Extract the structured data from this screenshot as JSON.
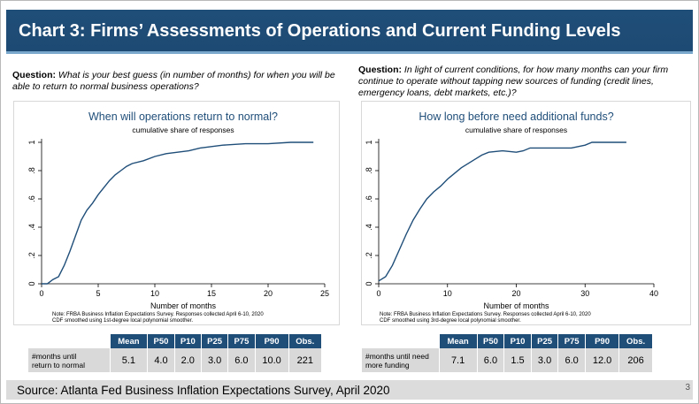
{
  "page": {
    "title": "Chart 3: Firms’ Assessments of Operations and Current Funding Levels",
    "source": "Source: Atlanta Fed Business Inflation Expectations Survey, April 2020",
    "page_number": "3"
  },
  "colors": {
    "title_bar": "#1f4e79",
    "series": "#1f4e79",
    "table_header": "#1f4e79",
    "table_cell": "#d9d9d9",
    "source_bar": "#dcdcdc"
  },
  "left": {
    "question_label": "Question:",
    "question_text": "What is your best guess (in number of months) for when you will be able to return to normal business operations?",
    "table": {
      "headers": [
        "Mean",
        "P50",
        "P10",
        "P25",
        "P75",
        "P90",
        "Obs."
      ],
      "row_label_line1": "#months until",
      "row_label_line2": "return to normal",
      "values": [
        "5.1",
        "4.0",
        "2.0",
        "3.0",
        "6.0",
        "10.0",
        "221"
      ]
    }
  },
  "right": {
    "question_label": "Question:",
    "question_text": "In light of current conditions, for how many months can your firm continue to operate without tapping new sources of funding (credit lines, emergency loans, debt markets, etc.)?",
    "table": {
      "headers": [
        "Mean",
        "P50",
        "P10",
        "P25",
        "P75",
        "P90",
        "Obs."
      ],
      "row_label_line1": "#months until need",
      "row_label_line2": "more funding",
      "values": [
        "7.1",
        "6.0",
        "1.5",
        "3.0",
        "6.0",
        "12.0",
        "206"
      ]
    }
  },
  "chart_data": [
    {
      "type": "line",
      "title": "When will operations return to normal?",
      "subtitle": "cumulative share of responses",
      "xlabel": "Number of months",
      "ylabel": "",
      "xlim": [
        0,
        25
      ],
      "ylim": [
        0,
        1
      ],
      "xticks": [
        "0",
        "5",
        "10",
        "15",
        "20",
        "25"
      ],
      "xtick_values": [
        0,
        5,
        10,
        15,
        20,
        25
      ],
      "yticks": [
        "0",
        ".2",
        ".4",
        ".6",
        ".8",
        "1"
      ],
      "ytick_values": [
        0,
        0.2,
        0.4,
        0.6,
        0.8,
        1
      ],
      "note_line1": "Note: FRBA Business Inflation Expectations Survey. Responses collected April 6-10, 2020",
      "note_line2": "CDF smoothed using 1st-degree local polynomial smoother.",
      "grid": false,
      "series": [
        {
          "x": [
            0,
            0.5,
            1,
            1.5,
            2,
            2.5,
            3,
            3.5,
            4,
            4.5,
            5,
            5.5,
            6,
            6.5,
            7,
            7.5,
            8,
            9,
            10,
            11,
            12,
            13,
            14,
            15,
            16,
            18,
            20,
            22,
            24
          ],
          "y": [
            0.0,
            0.0,
            0.03,
            0.05,
            0.13,
            0.23,
            0.34,
            0.45,
            0.52,
            0.57,
            0.63,
            0.68,
            0.73,
            0.77,
            0.8,
            0.83,
            0.85,
            0.87,
            0.9,
            0.92,
            0.93,
            0.94,
            0.96,
            0.97,
            0.98,
            0.99,
            0.99,
            1.0,
            1.0
          ]
        }
      ]
    },
    {
      "type": "line",
      "title": "How long before need additional funds?",
      "subtitle": "cumulative share of responses",
      "xlabel": "Number of months",
      "ylabel": "",
      "xlim": [
        0,
        40
      ],
      "ylim": [
        0,
        1
      ],
      "xticks": [
        "0",
        "10",
        "20",
        "30",
        "40"
      ],
      "xtick_values": [
        0,
        10,
        20,
        30,
        40
      ],
      "yticks": [
        "0",
        ".2",
        ".4",
        ".6",
        ".8",
        "1"
      ],
      "ytick_values": [
        0,
        0.2,
        0.4,
        0.6,
        0.8,
        1
      ],
      "note_line1": "Note: FRBA Business Inflation Expectations Survey. Responses collected April 6-10, 2020",
      "note_line2": "CDF smoothed using 3rd-degree local polynomial smoother.",
      "grid": false,
      "series": [
        {
          "x": [
            0,
            1,
            2,
            3,
            4,
            5,
            6,
            7,
            8,
            9,
            10,
            12,
            14,
            15,
            16,
            18,
            20,
            21,
            22,
            24,
            26,
            28,
            30,
            31,
            32,
            34,
            36
          ],
          "y": [
            0.02,
            0.05,
            0.13,
            0.24,
            0.35,
            0.45,
            0.53,
            0.6,
            0.65,
            0.69,
            0.74,
            0.82,
            0.88,
            0.91,
            0.93,
            0.94,
            0.93,
            0.94,
            0.96,
            0.96,
            0.96,
            0.96,
            0.98,
            1.0,
            1.0,
            1.0,
            1.0
          ]
        }
      ]
    }
  ]
}
